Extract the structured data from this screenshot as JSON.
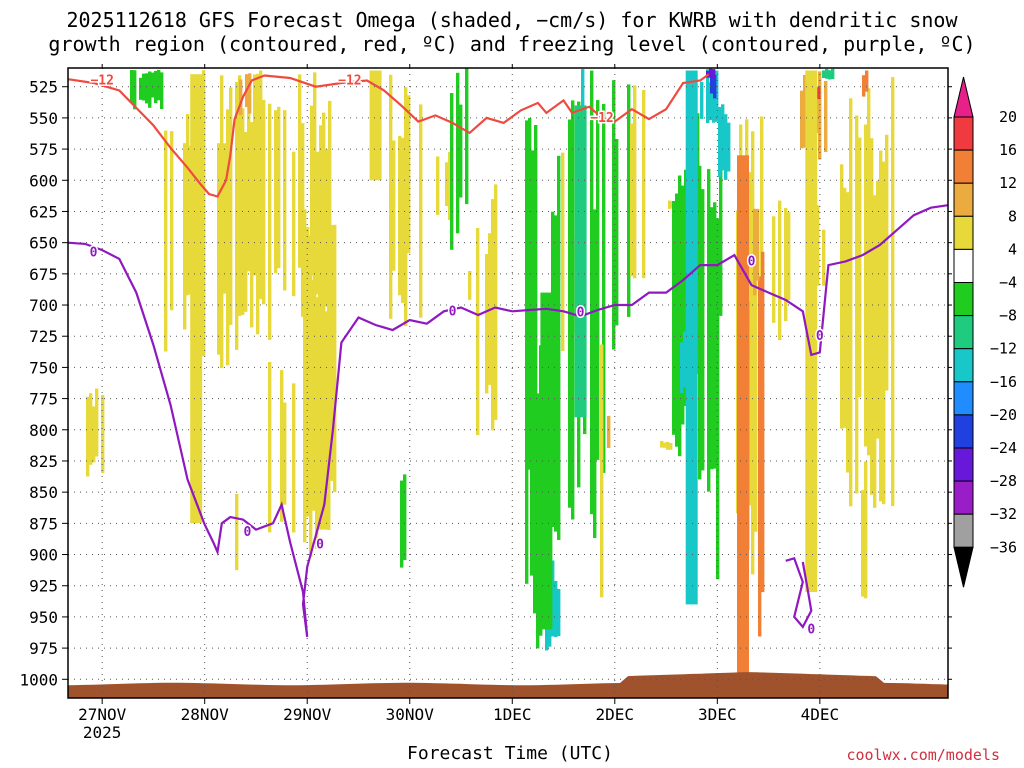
{
  "chart_data": {
    "type": "heatmap",
    "title_line1": "2025112618 GFS Forecast Omega (shaded, −cm/s) for KWRB with dendritic snow",
    "title_line2": "growth region (contoured, red, ºC) and freezing level (contoured, purple, ºC)",
    "xlabel": "Forecast Time (UTC)",
    "x_ticks": [
      "27NOV",
      "28NOV",
      "29NOV",
      "30NOV",
      "1DEC",
      "2DEC",
      "3DEC",
      "4DEC"
    ],
    "x_year": "2025",
    "x_range_hours": [
      -8,
      198
    ],
    "y_ticks": [
      525,
      550,
      575,
      600,
      625,
      650,
      675,
      700,
      725,
      750,
      775,
      800,
      825,
      850,
      875,
      900,
      925,
      950,
      975,
      1000
    ],
    "y_range_hPa": [
      510,
      1015
    ],
    "colorbar": {
      "labels": [
        "20",
        "16",
        "12",
        "8",
        "4",
        "−4",
        "−8",
        "−12",
        "−16",
        "−20",
        "−24",
        "−28",
        "−32",
        "−36"
      ],
      "bins": [
        {
          "range": "16 to 20",
          "color": "#ef3a3f"
        },
        {
          "range": "12 to 16",
          "color": "#f17f35"
        },
        {
          "range": "8 to 12",
          "color": "#ebab3f"
        },
        {
          "range": "4 to 8",
          "color": "#e7d93a"
        },
        {
          "range": "-4 to 4",
          "color": "#ffffff"
        },
        {
          "range": "-8 to -4",
          "color": "#1fcc1f"
        },
        {
          "range": "-12 to -8",
          "color": "#1fcc7f"
        },
        {
          "range": "-16 to -12",
          "color": "#18c8c8"
        },
        {
          "range": "-20 to -16",
          "color": "#1f8cff"
        },
        {
          "range": "-24 to -20",
          "color": "#2040e0"
        },
        {
          "range": "-28 to -24",
          "color": "#6818d8"
        },
        {
          "range": "-32 to -28",
          "color": "#9a1ec8"
        },
        {
          "range": "-36 to -32",
          "color": "#a0a0a0"
        }
      ],
      "top_arrow_color": "#e8208a",
      "bottom_arrow_color": "#000000"
    },
    "contours": {
      "dendritic_growth_label": "−12",
      "dendritic_growth_color": "#f04a40",
      "freezing_level_label": "0",
      "freezing_level_color": "#9018c0",
      "dendritic_growth_bottom_hPa": [
        [
          -8,
          519
        ],
        [
          -2,
          522
        ],
        [
          4,
          528
        ],
        [
          8,
          542
        ],
        [
          12,
          556
        ],
        [
          16,
          574
        ],
        [
          20,
          590
        ],
        [
          23,
          603
        ],
        [
          25,
          611
        ],
        [
          27,
          613
        ],
        [
          29,
          600
        ],
        [
          30,
          580
        ],
        [
          31,
          551
        ],
        [
          33,
          533
        ],
        [
          35,
          520
        ],
        [
          38,
          516
        ],
        [
          44,
          518
        ],
        [
          50,
          525
        ],
        [
          56,
          522
        ],
        [
          62,
          520
        ],
        [
          66,
          528
        ],
        [
          70,
          540
        ],
        [
          74,
          553
        ],
        [
          78,
          548
        ],
        [
          82,
          554
        ],
        [
          86,
          562
        ],
        [
          90,
          550
        ],
        [
          94,
          554
        ],
        [
          98,
          544
        ],
        [
          102,
          538
        ],
        [
          104,
          546
        ],
        [
          108,
          536
        ],
        [
          110,
          546
        ],
        [
          114,
          541
        ],
        [
          117,
          550
        ],
        [
          120,
          553
        ],
        [
          124,
          543
        ],
        [
          128,
          551
        ],
        [
          132,
          543
        ],
        [
          136,
          522
        ],
        [
          140,
          520
        ],
        [
          142,
          515
        ]
      ],
      "freezing_level_hPa": [
        [
          -8,
          650
        ],
        [
          -4,
          651
        ],
        [
          0,
          656
        ],
        [
          4,
          663
        ],
        [
          8,
          690
        ],
        [
          12,
          732
        ],
        [
          16,
          780
        ],
        [
          20,
          840
        ],
        [
          24,
          876
        ],
        [
          26,
          890
        ],
        [
          27,
          898
        ],
        [
          28,
          875
        ],
        [
          30,
          870
        ],
        [
          33,
          872
        ],
        [
          36,
          880
        ],
        [
          40,
          875
        ],
        [
          42,
          860
        ],
        [
          44,
          890
        ],
        [
          47,
          930
        ],
        [
          48,
          966
        ],
        [
          47,
          940
        ],
        [
          48,
          910
        ],
        [
          52,
          860
        ],
        [
          54,
          800
        ],
        [
          56,
          730
        ],
        [
          60,
          710
        ],
        [
          64,
          716
        ],
        [
          68,
          720
        ],
        [
          72,
          712
        ],
        [
          76,
          715
        ],
        [
          80,
          705
        ],
        [
          84,
          702
        ],
        [
          88,
          708
        ],
        [
          92,
          702
        ],
        [
          96,
          705
        ],
        [
          100,
          704
        ],
        [
          104,
          703
        ],
        [
          108,
          705
        ],
        [
          112,
          709
        ],
        [
          116,
          704
        ],
        [
          120,
          700
        ],
        [
          124,
          700
        ],
        [
          128,
          690
        ],
        [
          132,
          690
        ],
        [
          136,
          680
        ],
        [
          140,
          668
        ],
        [
          144,
          668
        ],
        [
          148,
          660
        ],
        [
          152,
          684
        ],
        [
          156,
          690
        ],
        [
          160,
          696
        ],
        [
          164,
          705
        ],
        [
          166,
          740
        ],
        [
          168,
          738
        ],
        [
          170,
          668
        ],
        [
          174,
          665
        ],
        [
          178,
          660
        ],
        [
          182,
          652
        ],
        [
          186,
          640
        ],
        [
          190,
          628
        ],
        [
          194,
          622
        ],
        [
          198,
          620
        ]
      ],
      "freezing_level_closed_hPa": [
        [
          160,
          905
        ],
        [
          162,
          903
        ],
        [
          164,
          922
        ],
        [
          162,
          950
        ],
        [
          164,
          958
        ],
        [
          166,
          945
        ],
        [
          165,
          925
        ],
        [
          164,
          906
        ]
      ]
    },
    "shading_regions": [
      {
        "hour": 22,
        "hPa_range": [
          515,
          875
        ],
        "range": "4 to 8"
      },
      {
        "hour": 52,
        "hPa_range": [
          705,
          880
        ],
        "range": "4 to 8"
      },
      {
        "hour": 64,
        "hPa_range": [
          512,
          600
        ],
        "range": "4 to 8"
      },
      {
        "hour": 104,
        "hPa_range": [
          690,
          960
        ],
        "range": "-8 to -4"
      },
      {
        "hour": 112,
        "hPa_range": [
          540,
          790
        ],
        "range": "-12 to -8"
      },
      {
        "hour": 138,
        "hPa_range": [
          512,
          940
        ],
        "range": "-16 to -12"
      },
      {
        "hour": 150,
        "hPa_range": [
          580,
          1010
        ],
        "range": "12 to 16"
      },
      {
        "hour": 166,
        "hPa_range": [
          512,
          930
        ],
        "range": "4 to 8"
      }
    ]
  },
  "credit": "coolwx.com/models"
}
